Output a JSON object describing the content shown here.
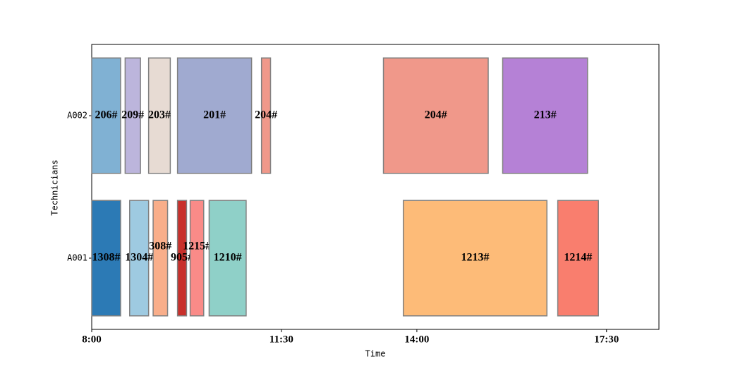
{
  "chart_data": {
    "type": "gantt",
    "x_label": "Time",
    "y_label": "Technicians",
    "categories": [
      "A001",
      "A002"
    ],
    "xlim": [
      0,
      628
    ],
    "xticks": [
      {
        "value": 0,
        "label": "8:00"
      },
      {
        "value": 210,
        "label": "11:30"
      },
      {
        "value": 360,
        "label": "14:00"
      },
      {
        "value": 570,
        "label": "17:30"
      }
    ],
    "tasks": [
      {
        "technician": "A002",
        "label": "206#",
        "start": 0,
        "end": 32,
        "color": "#80b1d3"
      },
      {
        "technician": "A002",
        "label": "209#",
        "start": 37,
        "end": 54,
        "color": "#bcb5dc"
      },
      {
        "technician": "A002",
        "label": "203#",
        "start": 63,
        "end": 87,
        "color": "#e7dbd3"
      },
      {
        "technician": "A002",
        "label": "201#",
        "start": 95,
        "end": 177,
        "color": "#a0aad0"
      },
      {
        "technician": "A002",
        "label": "204#",
        "start": 188,
        "end": 198,
        "color": "#f0988a"
      },
      {
        "technician": "A002",
        "label": "204#",
        "start": 323,
        "end": 439,
        "color": "#f0988a"
      },
      {
        "technician": "A002",
        "label": "213#",
        "start": 455,
        "end": 549,
        "color": "#b581d6"
      },
      {
        "technician": "A001",
        "label": "1308#",
        "start": 0,
        "end": 32,
        "color": "#2c7ab5"
      },
      {
        "technician": "A001",
        "label": "1304#",
        "start": 42,
        "end": 63,
        "color": "#9ecae1"
      },
      {
        "technician": "A001",
        "label": "308#",
        "start": 68,
        "end": 84,
        "color": "#f9ae8a"
      },
      {
        "technician": "A001",
        "label": "905#",
        "start": 95,
        "end": 105,
        "color": "#c8302b"
      },
      {
        "technician": "A001",
        "label": "1215#",
        "start": 109,
        "end": 124,
        "color": "#fa8b88"
      },
      {
        "technician": "A001",
        "label": "1210#",
        "start": 130,
        "end": 171,
        "color": "#8fd0c8"
      },
      {
        "technician": "A001",
        "label": "1213#",
        "start": 345,
        "end": 504,
        "color": "#fdbb78"
      },
      {
        "technician": "A001",
        "label": "1214#",
        "start": 516,
        "end": 561,
        "color": "#f97e6e"
      }
    ]
  }
}
